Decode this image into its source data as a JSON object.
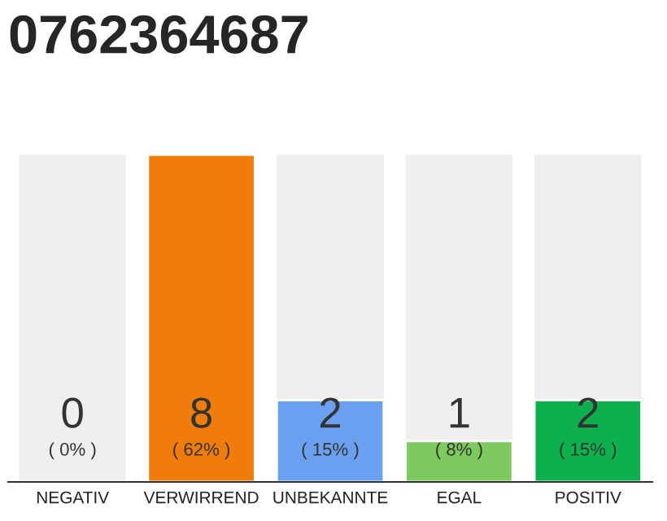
{
  "chart_data": {
    "type": "bar",
    "title": "0762364687",
    "categories": [
      "NEGATIV",
      "VERWIRREND",
      "UNBEKANNTE",
      "EGAL",
      "POSITIV"
    ],
    "values": [
      0,
      8,
      2,
      1,
      2
    ],
    "colors": [
      null,
      "#f07c0a",
      "#6aa0ef",
      "#7dcb5e",
      "#0db14b"
    ],
    "value_labels": [
      "0\n( 0% )",
      "8\n( 62% )",
      "2\n( 15% )",
      "1\n( 8% )",
      "2\n( 15% )"
    ],
    "ylim": [
      0,
      8
    ],
    "tick_labels": "x",
    "grid": false,
    "legend": false
  }
}
